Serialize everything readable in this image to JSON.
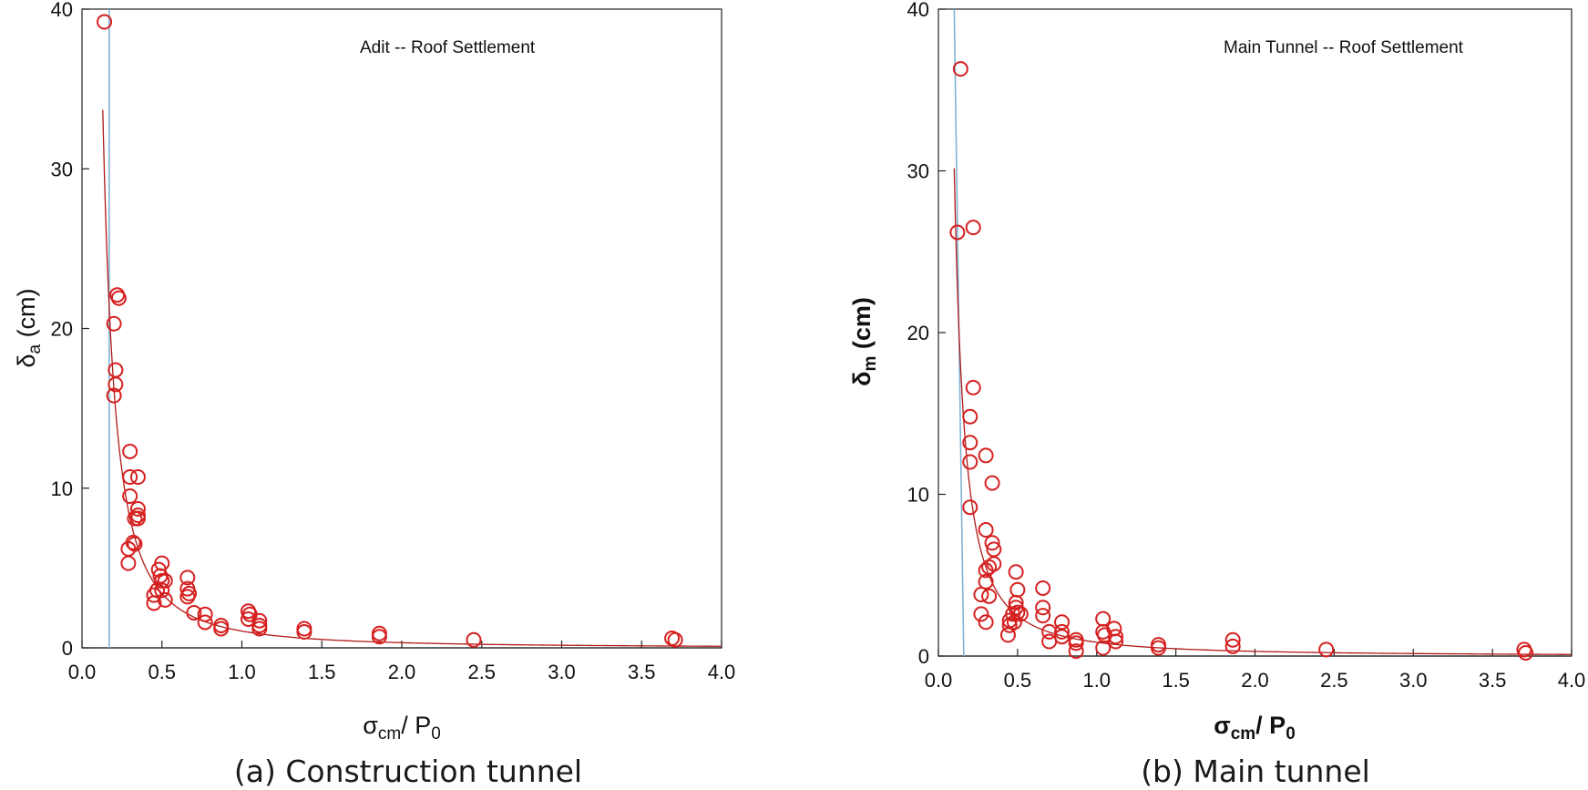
{
  "colors": {
    "marker": "#d62020",
    "fit": "#b01818",
    "vline": "#7fb3d5",
    "axis": "#222222"
  },
  "chart_data": [
    {
      "type": "scatter",
      "annotation": "Adit -- Roof Settlement",
      "caption": "(a) Construction tunnel",
      "xlabel": {
        "main": "σ",
        "sub": "cm",
        "rest": "/ P",
        "sub2": "0"
      },
      "ylabel": {
        "main": "δ",
        "sub": "a",
        "rest": " (cm)"
      },
      "xlim": [
        0,
        4
      ],
      "ylim": [
        0,
        40
      ],
      "xticks": [
        "0.0",
        "0.5",
        "1.0",
        "1.5",
        "2.0",
        "2.5",
        "3.0",
        "3.5",
        "4.0"
      ],
      "yticks": [
        "0",
        "10",
        "20",
        "30",
        "40"
      ],
      "vline_bottom_x": 0.17,
      "vline_top_x": 0.17,
      "fit_curve": {
        "x0": 0.13,
        "coefficient": 1.05,
        "exponent": -1.7
      },
      "points": [
        [
          0.14,
          39.2
        ],
        [
          0.22,
          22.1
        ],
        [
          0.23,
          21.9
        ],
        [
          0.2,
          20.3
        ],
        [
          0.21,
          17.4
        ],
        [
          0.21,
          16.5
        ],
        [
          0.2,
          15.8
        ],
        [
          0.3,
          12.3
        ],
        [
          0.3,
          10.7
        ],
        [
          0.35,
          10.7
        ],
        [
          0.3,
          9.5
        ],
        [
          0.35,
          8.7
        ],
        [
          0.35,
          8.3
        ],
        [
          0.33,
          8.1
        ],
        [
          0.35,
          8.1
        ],
        [
          0.33,
          6.5
        ],
        [
          0.32,
          6.6
        ],
        [
          0.29,
          6.2
        ],
        [
          0.29,
          5.3
        ],
        [
          0.5,
          5.3
        ],
        [
          0.48,
          4.9
        ],
        [
          0.49,
          4.5
        ],
        [
          0.5,
          4.2
        ],
        [
          0.52,
          4.2
        ],
        [
          0.47,
          3.6
        ],
        [
          0.5,
          3.6
        ],
        [
          0.45,
          3.3
        ],
        [
          0.45,
          2.8
        ],
        [
          0.52,
          3.0
        ],
        [
          0.66,
          4.4
        ],
        [
          0.66,
          3.7
        ],
        [
          0.67,
          3.4
        ],
        [
          0.66,
          3.2
        ],
        [
          0.7,
          2.2
        ],
        [
          0.77,
          2.1
        ],
        [
          0.77,
          1.6
        ],
        [
          0.87,
          1.4
        ],
        [
          0.87,
          1.2
        ],
        [
          1.04,
          2.3
        ],
        [
          1.05,
          2.1
        ],
        [
          1.04,
          1.8
        ],
        [
          1.11,
          1.7
        ],
        [
          1.11,
          1.4
        ],
        [
          1.11,
          1.2
        ],
        [
          1.39,
          1.2
        ],
        [
          1.39,
          1.0
        ],
        [
          1.86,
          0.9
        ],
        [
          1.86,
          0.7
        ],
        [
          2.45,
          0.5
        ],
        [
          3.69,
          0.6
        ],
        [
          3.71,
          0.5
        ]
      ]
    },
    {
      "type": "scatter",
      "annotation": "Main Tunnel -- Roof Settlement",
      "caption": "(b) Main tunnel",
      "xlabel": {
        "main": "σ",
        "sub": "cm",
        "rest": "/ P",
        "sub2": "0"
      },
      "ylabel": {
        "main": "δ",
        "sub": "m",
        "rest": " (cm)"
      },
      "xlim": [
        0,
        4
      ],
      "ylim": [
        0,
        40
      ],
      "xticks": [
        "0.0",
        "0.5",
        "1.0",
        "1.5",
        "2.0",
        "2.5",
        "3.0",
        "3.5",
        "4.0"
      ],
      "yticks": [
        "0",
        "10",
        "20",
        "30",
        "40"
      ],
      "vline_bottom_x": 0.16,
      "vline_top_x": 0.1,
      "fit_curve": {
        "x0": 0.1,
        "coefficient": 0.85,
        "exponent": -1.55
      },
      "points": [
        [
          0.14,
          36.3
        ],
        [
          0.12,
          26.2
        ],
        [
          0.22,
          26.5
        ],
        [
          0.22,
          16.6
        ],
        [
          0.2,
          14.8
        ],
        [
          0.2,
          13.2
        ],
        [
          0.2,
          12.0
        ],
        [
          0.3,
          12.4
        ],
        [
          0.34,
          10.7
        ],
        [
          0.2,
          9.2
        ],
        [
          0.3,
          7.8
        ],
        [
          0.34,
          7.0
        ],
        [
          0.35,
          6.6
        ],
        [
          0.35,
          5.7
        ],
        [
          0.3,
          5.3
        ],
        [
          0.32,
          5.5
        ],
        [
          0.3,
          4.6
        ],
        [
          0.27,
          3.8
        ],
        [
          0.32,
          3.7
        ],
        [
          0.27,
          2.6
        ],
        [
          0.3,
          2.1
        ],
        [
          0.49,
          5.2
        ],
        [
          0.5,
          4.1
        ],
        [
          0.49,
          3.3
        ],
        [
          0.49,
          3.0
        ],
        [
          0.5,
          2.7
        ],
        [
          0.47,
          2.6
        ],
        [
          0.52,
          2.6
        ],
        [
          0.45,
          2.2
        ],
        [
          0.45,
          1.9
        ],
        [
          0.48,
          2.1
        ],
        [
          0.44,
          1.3
        ],
        [
          0.66,
          4.2
        ],
        [
          0.66,
          3.0
        ],
        [
          0.66,
          2.5
        ],
        [
          0.7,
          1.5
        ],
        [
          0.7,
          0.9
        ],
        [
          0.78,
          2.1
        ],
        [
          0.78,
          1.5
        ],
        [
          0.78,
          1.2
        ],
        [
          0.87,
          1.0
        ],
        [
          0.87,
          0.8
        ],
        [
          0.87,
          0.3
        ],
        [
          1.04,
          2.3
        ],
        [
          1.04,
          1.5
        ],
        [
          1.05,
          1.3
        ],
        [
          1.04,
          0.5
        ],
        [
          1.11,
          1.7
        ],
        [
          1.12,
          1.2
        ],
        [
          1.12,
          0.9
        ],
        [
          1.39,
          0.7
        ],
        [
          1.39,
          0.5
        ],
        [
          1.86,
          1.0
        ],
        [
          1.86,
          0.6
        ],
        [
          2.45,
          0.4
        ],
        [
          3.7,
          0.4
        ],
        [
          3.71,
          0.2
        ]
      ]
    }
  ]
}
